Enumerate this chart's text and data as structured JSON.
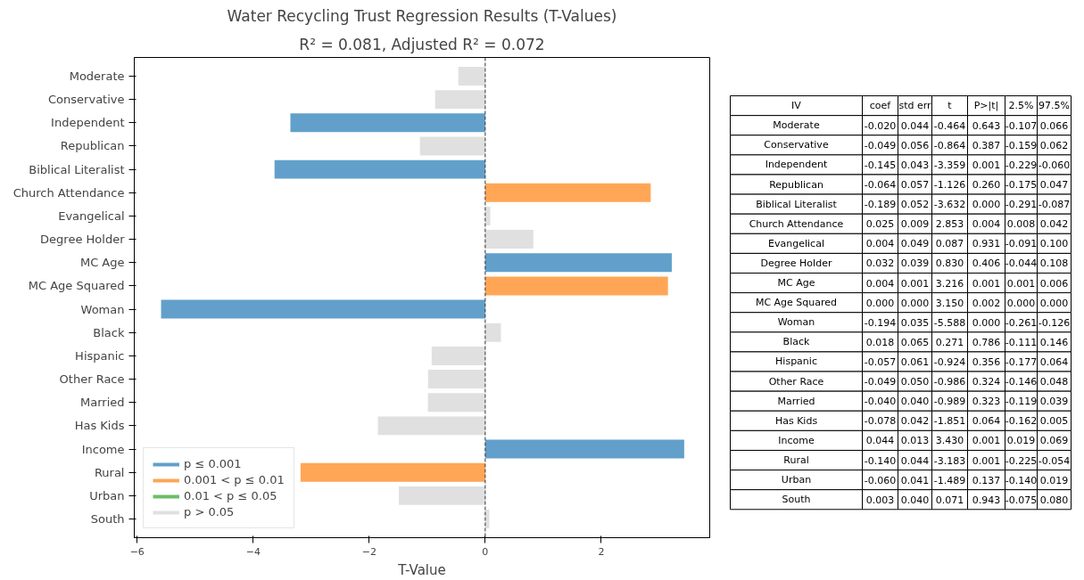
{
  "chart_data": [
    {
      "type": "bar",
      "orientation": "horizontal",
      "title": "Water Recycling Trust Regression Results (T-Values)",
      "subtitle": "R² = 0.081, Adjusted R² = 0.072",
      "xlabel": "T-Value",
      "categories": [
        "Moderate",
        "Conservative",
        "Independent",
        "Republican",
        "Biblical Literalist",
        "Church Attendance",
        "Evangelical",
        "Degree Holder",
        "MC Age",
        "MC Age Squared",
        "Woman",
        "Black",
        "Hispanic",
        "Other Race",
        "Married",
        "Has Kids",
        "Income",
        "Rural",
        "Urban",
        "South"
      ],
      "series": [
        {
          "name": "p ≤ 0.001",
          "color": "#62a0cb",
          "values": [
            null,
            null,
            -3.359,
            null,
            -3.632,
            null,
            null,
            null,
            3.216,
            null,
            -5.588,
            null,
            null,
            null,
            null,
            null,
            3.43,
            null,
            null,
            null
          ]
        },
        {
          "name": "0.001 < p ≤ 0.01",
          "color": "#ffa656",
          "values": [
            null,
            null,
            null,
            null,
            null,
            2.853,
            null,
            null,
            null,
            3.15,
            null,
            null,
            null,
            null,
            null,
            null,
            null,
            -3.183,
            null,
            null
          ]
        },
        {
          "name": "0.01 < p ≤ 0.05",
          "color": "#6bbd6b",
          "values": [
            null,
            null,
            null,
            null,
            null,
            null,
            null,
            null,
            null,
            null,
            null,
            null,
            null,
            null,
            null,
            null,
            null,
            null,
            null,
            null
          ]
        },
        {
          "name": "p > 0.05",
          "color": "#e0e0e0",
          "values": [
            -0.464,
            -0.864,
            null,
            -1.126,
            null,
            null,
            0.087,
            0.83,
            null,
            null,
            null,
            0.271,
            -0.924,
            -0.986,
            -0.989,
            -1.851,
            null,
            null,
            -1.489,
            0.071
          ]
        }
      ],
      "xlim": [
        -6.05,
        3.87
      ],
      "xticks": [
        -6,
        -4,
        -2,
        0,
        2
      ],
      "grid": false,
      "legend": "bottom left",
      "ref_lines": [
        {
          "axis": "x",
          "value": 0,
          "color": "#333333",
          "line_style": "dashed"
        }
      ]
    },
    {
      "type": "other",
      "ylabel": "IV",
      "categories": [
        "coef",
        "std err",
        "t",
        "P>|t|",
        "2.5%",
        "97.5%"
      ],
      "y_categories": [
        "Moderate",
        "Conservative",
        "Independent",
        "Republican",
        "Biblical Literalist",
        "Church Attendance",
        "Evangelical",
        "Degree Holder",
        "MC Age",
        "MC Age Squared",
        "Woman",
        "Black",
        "Hispanic",
        "Other Race",
        "Married",
        "Has Kids",
        "Income",
        "Rural",
        "Urban",
        "South"
      ],
      "cell_labels": [
        [
          "-0.020",
          "0.044",
          "-0.464",
          "0.643",
          "-0.107",
          "0.066"
        ],
        [
          "-0.049",
          "0.056",
          "-0.864",
          "0.387",
          "-0.159",
          "0.062"
        ],
        [
          "-0.145",
          "0.043",
          "-3.359",
          "0.001",
          "-0.229",
          "-0.060"
        ],
        [
          "-0.064",
          "0.057",
          "-1.126",
          "0.260",
          "-0.175",
          "0.047"
        ],
        [
          "-0.189",
          "0.052",
          "-3.632",
          "0.000",
          "-0.291",
          "-0.087"
        ],
        [
          "0.025",
          "0.009",
          "2.853",
          "0.004",
          "0.008",
          "0.042"
        ],
        [
          "0.004",
          "0.049",
          "0.087",
          "0.931",
          "-0.091",
          "0.100"
        ],
        [
          "0.032",
          "0.039",
          "0.830",
          "0.406",
          "-0.044",
          "0.108"
        ],
        [
          "0.004",
          "0.001",
          "3.216",
          "0.001",
          "0.001",
          "0.006"
        ],
        [
          "0.000",
          "0.000",
          "3.150",
          "0.002",
          "0.000",
          "0.000"
        ],
        [
          "-0.194",
          "0.035",
          "-5.588",
          "0.000",
          "-0.261",
          "-0.126"
        ],
        [
          "0.018",
          "0.065",
          "0.271",
          "0.786",
          "-0.111",
          "0.146"
        ],
        [
          "-0.057",
          "0.061",
          "-0.924",
          "0.356",
          "-0.177",
          "0.064"
        ],
        [
          "-0.049",
          "0.050",
          "-0.986",
          "0.324",
          "-0.146",
          "0.048"
        ],
        [
          "-0.040",
          "0.040",
          "-0.989",
          "0.323",
          "-0.119",
          "0.039"
        ],
        [
          "-0.078",
          "0.042",
          "-1.851",
          "0.064",
          "-0.162",
          "0.005"
        ],
        [
          "0.044",
          "0.013",
          "3.430",
          "0.001",
          "0.019",
          "0.069"
        ],
        [
          "-0.140",
          "0.044",
          "-3.183",
          "0.001",
          "-0.225",
          "-0.054"
        ],
        [
          "-0.060",
          "0.041",
          "-1.489",
          "0.137",
          "-0.140",
          "0.019"
        ],
        [
          "0.003",
          "0.040",
          "0.071",
          "0.943",
          "-0.075",
          "0.080"
        ]
      ]
    }
  ]
}
